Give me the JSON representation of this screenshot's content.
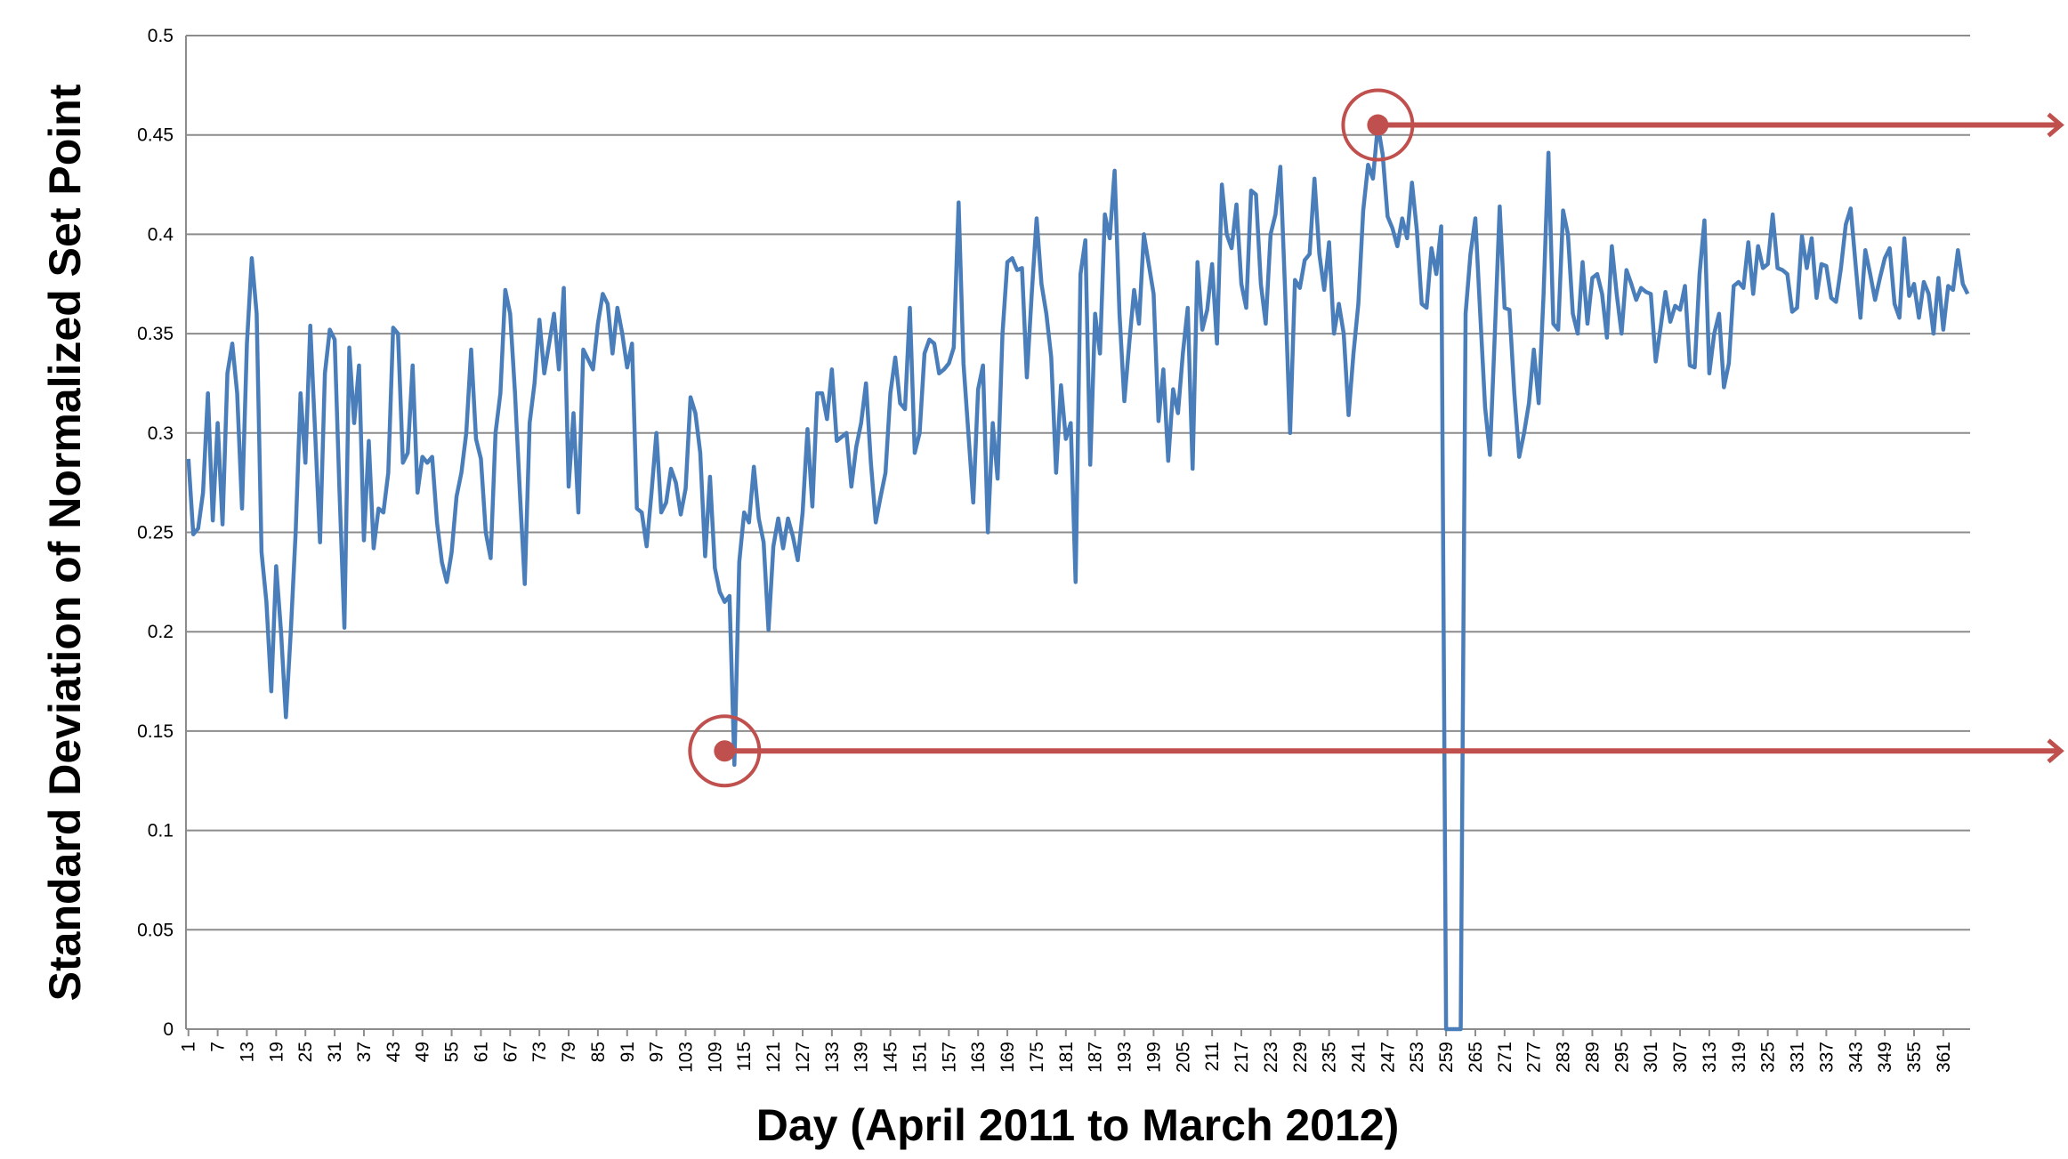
{
  "chart_data": {
    "type": "line",
    "y_label": "Standard Deviation of Normalized Set Point",
    "x_label": "Day (April 2011 to March 2012)",
    "x": [
      1,
      2,
      3,
      4,
      5,
      6,
      7,
      8,
      9,
      10,
      11,
      12,
      13,
      14,
      15,
      16,
      17,
      18,
      19,
      20,
      21,
      22,
      23,
      24,
      25,
      26,
      27,
      28,
      29,
      30,
      31,
      32,
      33,
      34,
      35,
      36,
      37,
      38,
      39,
      40,
      41,
      42,
      43,
      44,
      45,
      46,
      47,
      48,
      49,
      50,
      51,
      52,
      53,
      54,
      55,
      56,
      57,
      58,
      59,
      60,
      61,
      62,
      63,
      64,
      65,
      66,
      67,
      68,
      69,
      70,
      71,
      72,
      73,
      74,
      75,
      76,
      77,
      78,
      79,
      80,
      81,
      82,
      83,
      84,
      85,
      86,
      87,
      88,
      89,
      90,
      91,
      92,
      93,
      94,
      95,
      96,
      97,
      98,
      99,
      100,
      101,
      102,
      103,
      104,
      105,
      106,
      107,
      108,
      109,
      110,
      111,
      112,
      113,
      114,
      115,
      116,
      117,
      118,
      119,
      120,
      121,
      122,
      123,
      124,
      125,
      126,
      127,
      128,
      129,
      130,
      131,
      132,
      133,
      134,
      135,
      136,
      137,
      138,
      139,
      140,
      141,
      142,
      143,
      144,
      145,
      146,
      147,
      148,
      149,
      150,
      151,
      152,
      153,
      154,
      155,
      156,
      157,
      158,
      159,
      160,
      161,
      162,
      163,
      164,
      165,
      166,
      167,
      168,
      169,
      170,
      171,
      172,
      173,
      174,
      175,
      176,
      177,
      178,
      179,
      180,
      181,
      182,
      183,
      184,
      185,
      186,
      187,
      188,
      189,
      190,
      191,
      192,
      193,
      194,
      195,
      196,
      197,
      198,
      199,
      200,
      201,
      202,
      203,
      204,
      205,
      206,
      207,
      208,
      209,
      210,
      211,
      212,
      213,
      214,
      215,
      216,
      217,
      218,
      219,
      220,
      221,
      222,
      223,
      224,
      225,
      226,
      227,
      228,
      229,
      230,
      231,
      232,
      233,
      234,
      235,
      236,
      237,
      238,
      239,
      240,
      241,
      242,
      243,
      244,
      245,
      246,
      247,
      248,
      249,
      250,
      251,
      252,
      253,
      254,
      255,
      256,
      257,
      258,
      259,
      260,
      261,
      262,
      263,
      264,
      265,
      266,
      267,
      268,
      269,
      270,
      271,
      272,
      273,
      274,
      275,
      276,
      277,
      278,
      279,
      280,
      281,
      282,
      283,
      284,
      285,
      286,
      287,
      288,
      289,
      290,
      291,
      292,
      293,
      294,
      295,
      296,
      297,
      298,
      299,
      300,
      301,
      302,
      303,
      304,
      305,
      306,
      307,
      308,
      309,
      310,
      311,
      312,
      313,
      314,
      315,
      316,
      317,
      318,
      319,
      320,
      321,
      322,
      323,
      324,
      325,
      326,
      327,
      328,
      329,
      330,
      331,
      332,
      333,
      334,
      335,
      336,
      337,
      338,
      339,
      340,
      341,
      342,
      343,
      344,
      345,
      346,
      347,
      348,
      349,
      350,
      351,
      352,
      353,
      354,
      355,
      356,
      357,
      358,
      359,
      360,
      361,
      362,
      363,
      364,
      365,
      366
    ],
    "series": [
      {
        "color": "#4a7ebb",
        "values": [
          0.287,
          0.249,
          0.252,
          0.27,
          0.32,
          0.256,
          0.305,
          0.254,
          0.33,
          0.345,
          0.32,
          0.262,
          0.345,
          0.388,
          0.36,
          0.24,
          0.215,
          0.17,
          0.233,
          0.2,
          0.157,
          0.2,
          0.25,
          0.32,
          0.285,
          0.354,
          0.3,
          0.245,
          0.33,
          0.352,
          0.347,
          0.27,
          0.202,
          0.343,
          0.305,
          0.334,
          0.246,
          0.296,
          0.242,
          0.262,
          0.26,
          0.28,
          0.353,
          0.35,
          0.285,
          0.29,
          0.334,
          0.27,
          0.288,
          0.285,
          0.288,
          0.255,
          0.235,
          0.225,
          0.24,
          0.268,
          0.28,
          0.3,
          0.342,
          0.297,
          0.287,
          0.25,
          0.237,
          0.3,
          0.32,
          0.372,
          0.36,
          0.32,
          0.27,
          0.224,
          0.305,
          0.325,
          0.357,
          0.33,
          0.345,
          0.36,
          0.332,
          0.373,
          0.273,
          0.31,
          0.26,
          0.342,
          0.337,
          0.332,
          0.355,
          0.37,
          0.365,
          0.34,
          0.363,
          0.35,
          0.333,
          0.345,
          0.262,
          0.26,
          0.243,
          0.27,
          0.3,
          0.26,
          0.265,
          0.282,
          0.275,
          0.259,
          0.272,
          0.318,
          0.31,
          0.29,
          0.238,
          0.278,
          0.232,
          0.22,
          0.215,
          0.218,
          0.133,
          0.235,
          0.26,
          0.255,
          0.283,
          0.257,
          0.245,
          0.201,
          0.243,
          0.257,
          0.242,
          0.257,
          0.248,
          0.236,
          0.26,
          0.302,
          0.263,
          0.32,
          0.32,
          0.307,
          0.332,
          0.296,
          0.298,
          0.3,
          0.273,
          0.293,
          0.305,
          0.325,
          0.285,
          0.255,
          0.268,
          0.28,
          0.32,
          0.338,
          0.315,
          0.312,
          0.363,
          0.29,
          0.3,
          0.34,
          0.347,
          0.345,
          0.33,
          0.332,
          0.335,
          0.343,
          0.416,
          0.335,
          0.3,
          0.265,
          0.322,
          0.334,
          0.25,
          0.305,
          0.277,
          0.35,
          0.386,
          0.388,
          0.382,
          0.383,
          0.328,
          0.37,
          0.408,
          0.375,
          0.36,
          0.338,
          0.28,
          0.324,
          0.297,
          0.305,
          0.225,
          0.38,
          0.397,
          0.284,
          0.36,
          0.34,
          0.41,
          0.398,
          0.432,
          0.36,
          0.316,
          0.345,
          0.372,
          0.355,
          0.4,
          0.385,
          0.37,
          0.306,
          0.332,
          0.286,
          0.322,
          0.31,
          0.34,
          0.363,
          0.282,
          0.386,
          0.352,
          0.362,
          0.385,
          0.345,
          0.425,
          0.4,
          0.393,
          0.415,
          0.375,
          0.363,
          0.422,
          0.42,
          0.375,
          0.355,
          0.4,
          0.41,
          0.434,
          0.37,
          0.3,
          0.377,
          0.373,
          0.387,
          0.39,
          0.428,
          0.39,
          0.372,
          0.396,
          0.35,
          0.365,
          0.35,
          0.309,
          0.34,
          0.365,
          0.412,
          0.435,
          0.428,
          0.455,
          0.44,
          0.409,
          0.403,
          0.394,
          0.408,
          0.398,
          0.426,
          0.402,
          0.365,
          0.363,
          0.393,
          0.38,
          0.404,
          0,
          0,
          0,
          0,
          0.36,
          0.39,
          0.408,
          0.36,
          0.313,
          0.289,
          0.35,
          0.414,
          0.363,
          0.362,
          0.32,
          0.288,
          0.3,
          0.315,
          0.342,
          0.315,
          0.37,
          0.441,
          0.355,
          0.352,
          0.412,
          0.4,
          0.36,
          0.35,
          0.386,
          0.355,
          0.378,
          0.38,
          0.37,
          0.348,
          0.394,
          0.37,
          0.35,
          0.382,
          0.375,
          0.367,
          0.373,
          0.371,
          0.37,
          0.336,
          0.353,
          0.371,
          0.356,
          0.364,
          0.362,
          0.374,
          0.334,
          0.333,
          0.38,
          0.407,
          0.33,
          0.35,
          0.36,
          0.323,
          0.335,
          0.374,
          0.376,
          0.373,
          0.396,
          0.37,
          0.394,
          0.383,
          0.385,
          0.41,
          0.383,
          0.382,
          0.38,
          0.361,
          0.363,
          0.399,
          0.383,
          0.398,
          0.368,
          0.385,
          0.384,
          0.368,
          0.366,
          0.383,
          0.405,
          0.413,
          0.385,
          0.358,
          0.392,
          0.38,
          0.367,
          0.378,
          0.388,
          0.393,
          0.365,
          0.358,
          0.398,
          0.369,
          0.375,
          0.358,
          0.376,
          0.37,
          0.35,
          0.378,
          0.352,
          0.374,
          0.372,
          0.392,
          0.375,
          0.37
        ]
      }
    ],
    "highlights": [
      {
        "x": 111,
        "y": 0.14,
        "color": "#c0504d"
      },
      {
        "x": 245,
        "y": 0.455,
        "color": "#c0504d"
      }
    ],
    "xlim": [
      0.5,
      366.5
    ],
    "xticks": [
      1,
      7,
      13,
      19,
      25,
      31,
      37,
      43,
      49,
      55,
      61,
      67,
      73,
      79,
      85,
      91,
      97,
      103,
      109,
      115,
      121,
      127,
      133,
      139,
      145,
      151,
      157,
      163,
      169,
      175,
      181,
      187,
      193,
      199,
      205,
      211,
      217,
      223,
      229,
      235,
      241,
      247,
      253,
      259,
      265,
      271,
      277,
      283,
      289,
      295,
      301,
      307,
      313,
      319,
      325,
      331,
      337,
      343,
      349,
      355,
      361
    ],
    "ylim": [
      0,
      0.5
    ],
    "yticks": [
      0,
      0.05,
      0.1,
      0.15,
      0.2,
      0.25,
      0.3,
      0.35,
      0.4,
      0.45,
      0.5
    ],
    "grid": true
  }
}
